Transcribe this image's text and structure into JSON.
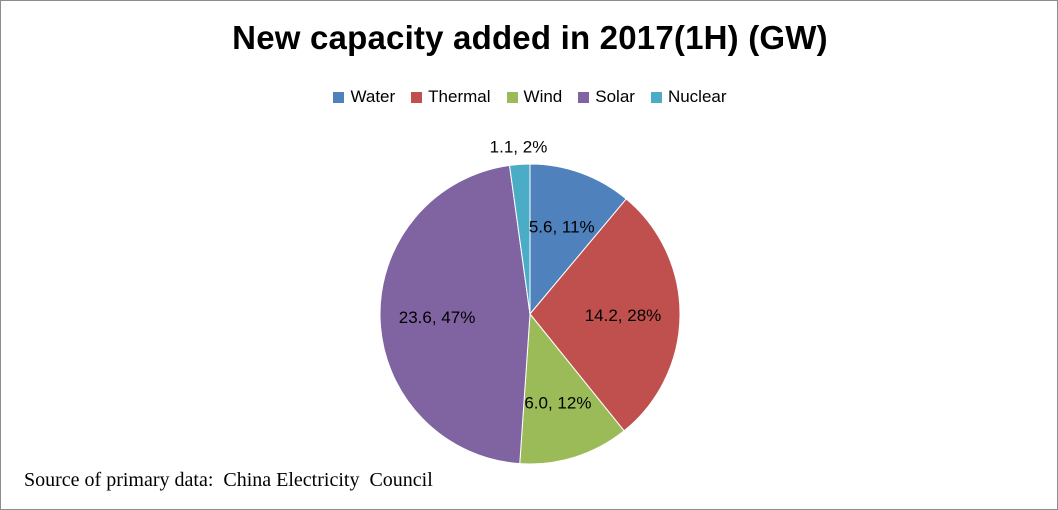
{
  "chart_data": {
    "type": "pie",
    "title": "New capacity added in 2017(1H) (GW)",
    "categories": [
      "Water",
      "Thermal",
      "Wind",
      "Solar",
      "Nuclear"
    ],
    "values": [
      5.6,
      14.2,
      6.0,
      23.6,
      1.1
    ],
    "percents": [
      "11%",
      "28%",
      "12%",
      "47%",
      "2%"
    ],
    "data_labels": [
      "5.6, 11%",
      "14.2, 28%",
      "6.0, 12%",
      "23.6, 47%",
      "1.1, 2%"
    ],
    "colors": [
      "#4f81bd",
      "#c0504d",
      "#9bbb59",
      "#8064a2",
      "#4bacc6"
    ],
    "legend_position": "top"
  },
  "source_note": "Source of primary data:  China Electricity  Council"
}
